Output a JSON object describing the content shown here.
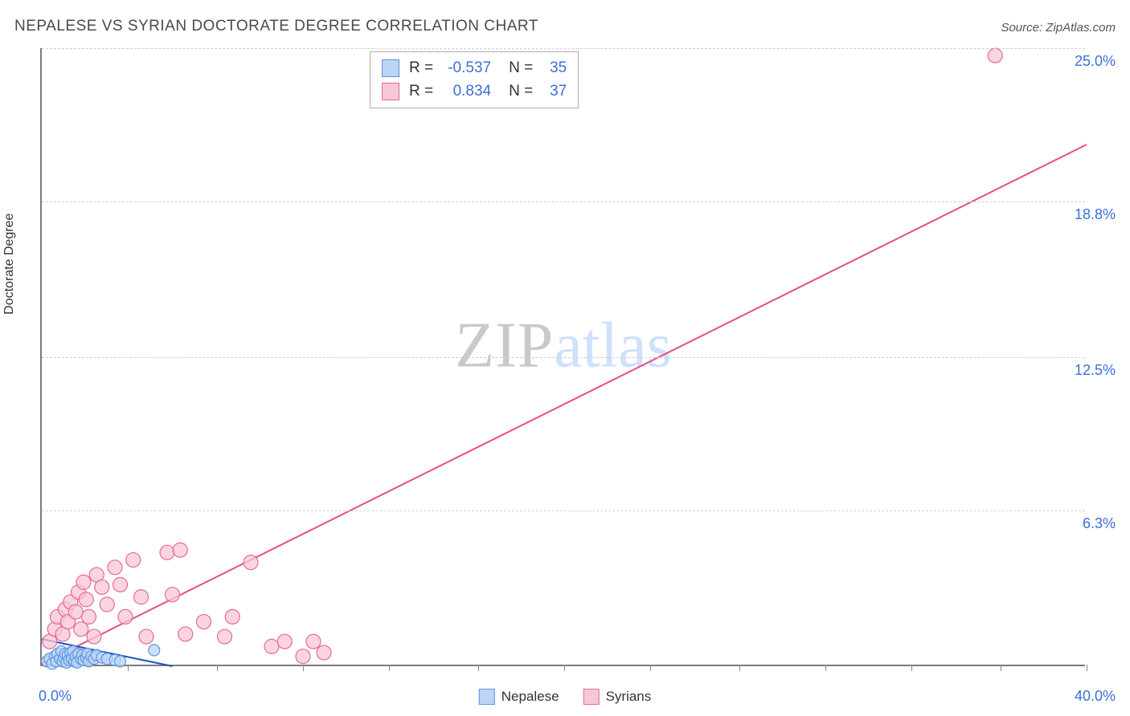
{
  "title": "NEPALESE VS SYRIAN DOCTORATE DEGREE CORRELATION CHART",
  "source_label": "Source: ZipAtlas.com",
  "y_axis_label": "Doctorate Degree",
  "watermark": {
    "zip": "ZIP",
    "atlas": "atlas"
  },
  "axes": {
    "x_origin_label": "0.0%",
    "x_max_label": "40.0%",
    "xlim": [
      0,
      40
    ],
    "ylim": [
      0,
      25
    ],
    "y_ticks": [
      6.3,
      12.5,
      18.8,
      25.0
    ],
    "y_tick_labels": [
      "6.3%",
      "12.5%",
      "18.8%",
      "25.0%"
    ],
    "x_minor_ticks": [
      3.3,
      6.7,
      10,
      13.3,
      16.7,
      20,
      23.3,
      26.7,
      30,
      33.3,
      36.7,
      40
    ],
    "grid_color": "#d0d0d0",
    "axis_color": "#7a7a7a",
    "tick_label_color": "#3b6fd6",
    "tick_label_fontsize": 18
  },
  "series": {
    "nepalese": {
      "label": "Nepalese",
      "color_fill": "#bcd5f5",
      "color_stroke": "#5d94e2",
      "R_label": "R =",
      "R_value": "-0.537",
      "N_label": "N =",
      "N_value": "35",
      "marker_radius": 7,
      "line": {
        "x1": 0,
        "y1": 1.1,
        "x2": 5.0,
        "y2": 0,
        "color": "#1b4fc2",
        "width": 2
      },
      "points": [
        [
          0.2,
          0.2
        ],
        [
          0.3,
          0.3
        ],
        [
          0.4,
          0.1
        ],
        [
          0.5,
          0.4
        ],
        [
          0.55,
          0.2
        ],
        [
          0.6,
          0.5
        ],
        [
          0.7,
          0.3
        ],
        [
          0.75,
          0.6
        ],
        [
          0.8,
          0.2
        ],
        [
          0.85,
          0.35
        ],
        [
          0.9,
          0.5
        ],
        [
          0.95,
          0.15
        ],
        [
          1.0,
          0.45
        ],
        [
          1.05,
          0.25
        ],
        [
          1.1,
          0.55
        ],
        [
          1.15,
          0.3
        ],
        [
          1.2,
          0.6
        ],
        [
          1.25,
          0.2
        ],
        [
          1.3,
          0.4
        ],
        [
          1.35,
          0.15
        ],
        [
          1.4,
          0.5
        ],
        [
          1.5,
          0.3
        ],
        [
          1.55,
          0.45
        ],
        [
          1.6,
          0.25
        ],
        [
          1.7,
          0.35
        ],
        [
          1.75,
          0.5
        ],
        [
          1.8,
          0.2
        ],
        [
          1.9,
          0.4
        ],
        [
          2.0,
          0.3
        ],
        [
          2.1,
          0.45
        ],
        [
          2.3,
          0.35
        ],
        [
          2.5,
          0.3
        ],
        [
          2.8,
          0.25
        ],
        [
          3.0,
          0.2
        ],
        [
          4.3,
          0.65
        ]
      ]
    },
    "syrians": {
      "label": "Syrians",
      "color_fill": "#f8c7d5",
      "color_stroke": "#e66a94",
      "R_label": "R =",
      "R_value": "0.834",
      "N_label": "N =",
      "N_value": "37",
      "marker_radius": 9,
      "line": {
        "x1": 0,
        "y1": 0.1,
        "x2": 40,
        "y2": 21.1,
        "color": "#e84c89",
        "width": 2
      },
      "points": [
        [
          0.3,
          1.0
        ],
        [
          0.5,
          1.5
        ],
        [
          0.6,
          2.0
        ],
        [
          0.8,
          1.3
        ],
        [
          0.9,
          2.3
        ],
        [
          1.0,
          1.8
        ],
        [
          1.1,
          2.6
        ],
        [
          1.3,
          2.2
        ],
        [
          1.4,
          3.0
        ],
        [
          1.5,
          1.5
        ],
        [
          1.6,
          3.4
        ],
        [
          1.7,
          2.7
        ],
        [
          1.8,
          2.0
        ],
        [
          2.0,
          1.2
        ],
        [
          2.1,
          3.7
        ],
        [
          2.3,
          3.2
        ],
        [
          2.5,
          2.5
        ],
        [
          2.8,
          4.0
        ],
        [
          3.0,
          3.3
        ],
        [
          3.2,
          2.0
        ],
        [
          3.5,
          4.3
        ],
        [
          3.8,
          2.8
        ],
        [
          4.0,
          1.2
        ],
        [
          4.8,
          4.6
        ],
        [
          5.0,
          2.9
        ],
        [
          5.3,
          4.7
        ],
        [
          5.5,
          1.3
        ],
        [
          6.2,
          1.8
        ],
        [
          7.0,
          1.2
        ],
        [
          7.3,
          2.0
        ],
        [
          8.0,
          4.2
        ],
        [
          8.8,
          0.8
        ],
        [
          9.3,
          1.0
        ],
        [
          10.0,
          0.4
        ],
        [
          10.4,
          1.0
        ],
        [
          10.8,
          0.55
        ],
        [
          36.5,
          24.7
        ]
      ]
    }
  },
  "stats_box": {
    "fontsize": 19,
    "border_color": "#b0b0b0"
  },
  "legend_bottom": {
    "fontsize": 17
  }
}
